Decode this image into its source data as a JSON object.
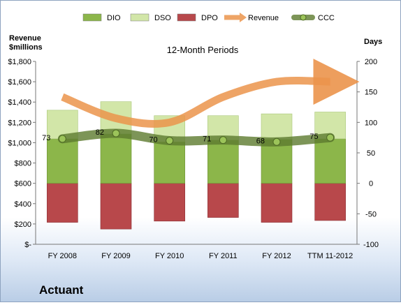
{
  "chart_data": {
    "type": "bar",
    "title": "12-Month Periods",
    "company": "Actuant",
    "left_axis_label_line1": "Revenue",
    "left_axis_label_line2": "$millions",
    "right_axis_label": "Days",
    "categories": [
      "FY 2008",
      "FY 2009",
      "FY 2010",
      "FY 2011",
      "FY 2012",
      "TTM 11-2012"
    ],
    "left_ylim": [
      0,
      1800
    ],
    "left_ticks": [
      "$-",
      "$200",
      "$400",
      "$600",
      "$800",
      "$1,000",
      "$1,200",
      "$1,400",
      "$1,600",
      "$1,800"
    ],
    "right_ylim": [
      -100,
      200
    ],
    "right_ticks": [
      "-100",
      "-50",
      "0",
      "50",
      "100",
      "150",
      "200"
    ],
    "legend": [
      "DIO",
      "DSO",
      "DPO",
      "Revenue",
      "CCC"
    ],
    "legend_position": "top",
    "grid": false,
    "colors": {
      "DIO": "#8cb64a",
      "DSO": "#d2e6a8",
      "DPO": "#b8484b",
      "Revenue": "#eb944b",
      "CCC": "#5d7a2e"
    },
    "series": [
      {
        "name": "DIO",
        "axis": "right",
        "values": [
          73,
          81,
          68,
          71,
          72,
          73
        ]
      },
      {
        "name": "DSO",
        "axis": "right",
        "values": [
          47,
          53,
          43,
          40,
          42,
          44
        ]
      },
      {
        "name": "DPO",
        "axis": "right",
        "values": [
          -64,
          -75,
          -62,
          -56,
          -64,
          -61
        ]
      },
      {
        "name": "Revenue",
        "axis": "left",
        "values": [
          1450,
          1240,
          1200,
          1450,
          1600,
          1600
        ]
      },
      {
        "name": "CCC",
        "axis": "right",
        "values": [
          73,
          82,
          70,
          71,
          68,
          75
        ]
      }
    ],
    "ccc_labels": [
      "73",
      "82",
      "70",
      "71",
      "68",
      "75"
    ]
  }
}
